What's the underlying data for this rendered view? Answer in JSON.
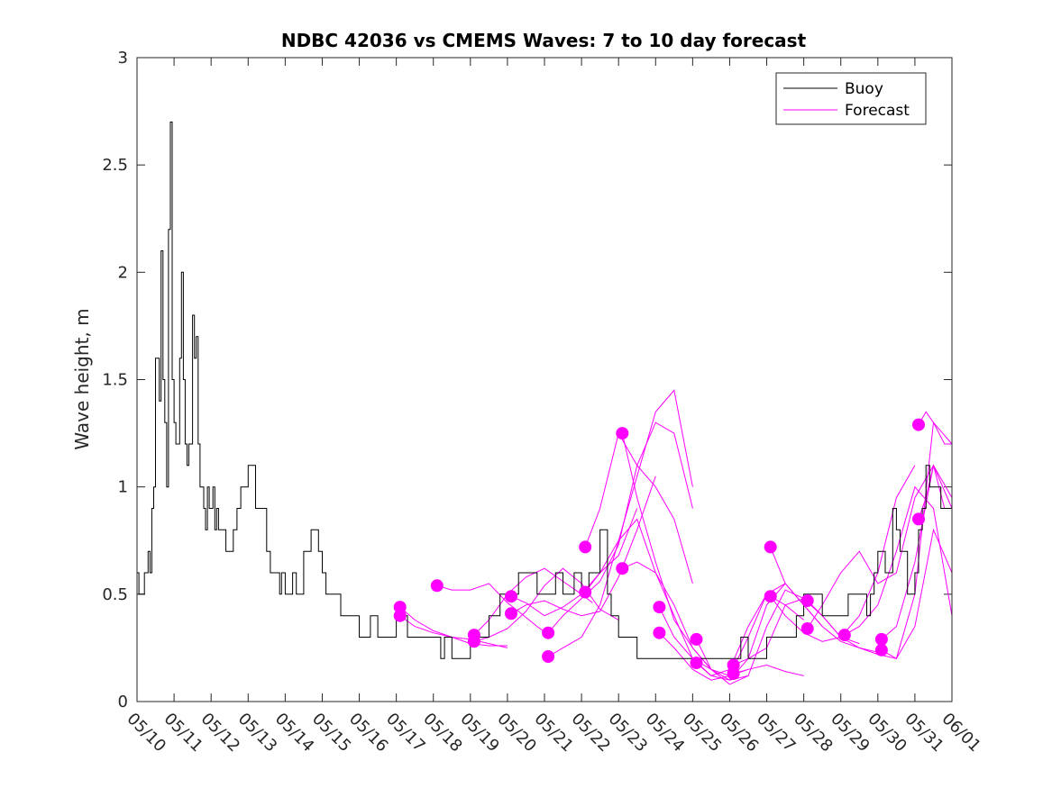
{
  "chart_data": {
    "type": "line",
    "title": "NDBC 42036 vs CMEMS Waves: 7 to 10 day forecast",
    "ylabel": "Wave height, m",
    "xlabel": "",
    "xlim": [
      0,
      22
    ],
    "ylim": [
      0,
      3
    ],
    "x_tick_labels": [
      "05/10",
      "05/11",
      "05/12",
      "05/13",
      "05/14",
      "05/15",
      "05/16",
      "05/17",
      "05/18",
      "05/19",
      "05/20",
      "05/21",
      "05/22",
      "05/23",
      "05/24",
      "05/25",
      "05/26",
      "05/27",
      "05/28",
      "05/29",
      "05/30",
      "05/31",
      "06/01"
    ],
    "y_ticks": [
      0,
      0.5,
      1,
      1.5,
      2,
      2.5,
      3
    ],
    "y_tick_labels": [
      "0",
      "0.5",
      "1",
      "1.5",
      "2",
      "2.5",
      "3"
    ],
    "legend": {
      "placement": "top-right",
      "entries": [
        {
          "label": "Buoy",
          "color": "#000000"
        },
        {
          "label": "Forecast",
          "color": "#ff00ff"
        }
      ]
    },
    "colors": {
      "buoy": "#000000",
      "forecast": "#ff00ff"
    },
    "buoy": {
      "name": "Buoy",
      "x": [
        0,
        0.05,
        0.1,
        0.2,
        0.3,
        0.35,
        0.4,
        0.45,
        0.5,
        0.6,
        0.65,
        0.7,
        0.75,
        0.8,
        0.85,
        0.9,
        0.95,
        1.0,
        1.05,
        1.1,
        1.15,
        1.2,
        1.25,
        1.3,
        1.35,
        1.4,
        1.5,
        1.55,
        1.6,
        1.65,
        1.7,
        1.75,
        1.8,
        1.85,
        1.9,
        1.95,
        2.0,
        2.05,
        2.1,
        2.15,
        2.2,
        2.3,
        2.4,
        2.5,
        2.6,
        2.7,
        2.8,
        3.0,
        3.2,
        3.5,
        3.6,
        3.7,
        3.75,
        3.8,
        3.85,
        3.9,
        4.0,
        4.1,
        4.2,
        4.3,
        4.5,
        4.7,
        4.9,
        5.0,
        5.1,
        5.2,
        5.4,
        5.5,
        5.7,
        5.8,
        6.0,
        6.2,
        6.3,
        6.5,
        6.6,
        6.9,
        7.0,
        7.2,
        7.3,
        7.5,
        7.8,
        8.0,
        8.2,
        8.3,
        8.5,
        8.7,
        9.0,
        9.2,
        9.3,
        9.5,
        9.8,
        10.0,
        10.2,
        10.3,
        10.5,
        10.8,
        11.0,
        11.2,
        11.3,
        11.5,
        11.8,
        12.0,
        12.2,
        12.5,
        12.7,
        12.8,
        13.0,
        13.2,
        13.5,
        13.8,
        14.0,
        14.2,
        14.3,
        14.5,
        14.8,
        15.0,
        15.2,
        15.5,
        15.7,
        16.0,
        16.3,
        16.5,
        16.8,
        17.0,
        17.2,
        17.5,
        17.8,
        18.0,
        18.2,
        18.5,
        18.8,
        19.0,
        19.2,
        19.5,
        19.7,
        19.8,
        19.9,
        20.0,
        20.2,
        20.4,
        20.5,
        20.6,
        20.8,
        21.0,
        21.1,
        21.2,
        21.3,
        21.4,
        21.5,
        21.7,
        22.0
      ],
      "y": [
        0.6,
        0.5,
        0.5,
        0.6,
        0.7,
        0.6,
        0.9,
        1.0,
        1.6,
        1.4,
        2.1,
        1.5,
        1.3,
        1.0,
        2.2,
        2.7,
        1.5,
        1.3,
        1.2,
        1.2,
        1.6,
        2.0,
        1.5,
        1.2,
        1.1,
        1.2,
        1.8,
        1.6,
        1.7,
        1.2,
        1.0,
        1.0,
        0.9,
        0.8,
        1.0,
        0.9,
        0.9,
        1.0,
        0.8,
        0.9,
        0.8,
        0.8,
        0.7,
        0.7,
        0.8,
        0.9,
        1.0,
        1.1,
        0.9,
        0.7,
        0.6,
        0.6,
        0.6,
        0.6,
        0.5,
        0.6,
        0.5,
        0.5,
        0.6,
        0.5,
        0.7,
        0.8,
        0.7,
        0.6,
        0.5,
        0.5,
        0.5,
        0.4,
        0.4,
        0.4,
        0.3,
        0.3,
        0.4,
        0.3,
        0.3,
        0.3,
        0.4,
        0.4,
        0.3,
        0.3,
        0.3,
        0.3,
        0.2,
        0.3,
        0.2,
        0.2,
        0.3,
        0.3,
        0.3,
        0.4,
        0.5,
        0.5,
        0.5,
        0.6,
        0.6,
        0.5,
        0.5,
        0.5,
        0.6,
        0.5,
        0.6,
        0.5,
        0.6,
        0.8,
        0.5,
        0.4,
        0.3,
        0.3,
        0.2,
        0.2,
        0.2,
        0.2,
        0.2,
        0.2,
        0.2,
        0.2,
        0.2,
        0.2,
        0.2,
        0.2,
        0.3,
        0.2,
        0.2,
        0.3,
        0.3,
        0.3,
        0.4,
        0.5,
        0.5,
        0.4,
        0.4,
        0.4,
        0.5,
        0.5,
        0.4,
        0.5,
        0.6,
        0.7,
        0.6,
        0.9,
        0.8,
        0.7,
        0.5,
        0.6,
        0.8,
        0.9,
        1.1,
        1.0,
        1.0,
        0.9,
        0.8
      ]
    },
    "forecasts": [
      {
        "name": "Forecast",
        "x": [
          7.1,
          7.5,
          8.0,
          8.5,
          9.0,
          9.5,
          10.0
        ],
        "y": [
          0.44,
          0.38,
          0.33,
          0.3,
          0.27,
          0.26,
          0.26
        ]
      },
      {
        "name": "Forecast",
        "x": [
          7.1,
          7.5,
          8.0,
          8.5,
          9.0,
          9.5,
          10.0
        ],
        "y": [
          0.4,
          0.35,
          0.32,
          0.3,
          0.29,
          0.27,
          0.25
        ]
      },
      {
        "name": "Forecast",
        "x": [
          8.1,
          8.5,
          9.0,
          9.5,
          10.0,
          10.3,
          10.8,
          11.2
        ],
        "y": [
          0.54,
          0.52,
          0.52,
          0.55,
          0.46,
          0.42,
          0.35,
          0.3
        ]
      },
      {
        "name": "Forecast",
        "x": [
          9.1,
          9.5,
          10.0,
          10.5,
          11.0,
          11.5,
          12.0,
          12.3
        ],
        "y": [
          0.31,
          0.38,
          0.5,
          0.58,
          0.62,
          0.56,
          0.5,
          0.46
        ]
      },
      {
        "name": "Forecast",
        "x": [
          9.1,
          9.5,
          10.0,
          10.5,
          11.0,
          11.5,
          12.0,
          12.5,
          13.0
        ],
        "y": [
          0.28,
          0.3,
          0.34,
          0.42,
          0.54,
          0.62,
          0.55,
          0.43,
          0.38
        ]
      },
      {
        "name": "Forecast",
        "x": [
          10.1,
          10.5,
          11.0,
          11.5,
          12.0,
          12.5,
          13.0,
          13.5
        ],
        "y": [
          0.49,
          0.46,
          0.4,
          0.44,
          0.5,
          0.6,
          0.68,
          0.9
        ]
      },
      {
        "name": "Forecast",
        "x": [
          10.1,
          10.5,
          11.0,
          11.5,
          12.0,
          12.5,
          13.0,
          13.5,
          14.0
        ],
        "y": [
          0.41,
          0.45,
          0.47,
          0.43,
          0.4,
          0.42,
          0.58,
          0.8,
          1.05
        ]
      },
      {
        "name": "Forecast",
        "x": [
          11.1,
          11.5,
          12.0,
          12.5,
          13.0,
          13.5,
          14.0,
          14.5,
          15.0
        ],
        "y": [
          0.21,
          0.25,
          0.3,
          0.45,
          0.75,
          1.05,
          1.35,
          1.45,
          1.0
        ]
      },
      {
        "name": "Forecast",
        "x": [
          11.1,
          11.5,
          12.0,
          12.5,
          13.0,
          13.5,
          14.0,
          14.5,
          15.0
        ],
        "y": [
          0.32,
          0.4,
          0.48,
          0.56,
          0.73,
          1.1,
          1.3,
          1.25,
          0.9
        ]
      },
      {
        "name": "Forecast",
        "x": [
          12.1,
          12.5,
          13.0,
          13.5,
          14.0,
          14.5,
          15.0
        ],
        "y": [
          0.72,
          0.9,
          1.25,
          1.1,
          1.0,
          0.85,
          0.55
        ]
      },
      {
        "name": "Forecast",
        "x": [
          12.1,
          12.5,
          13.0,
          13.5,
          14.0,
          14.5,
          15.0,
          15.5
        ],
        "y": [
          0.51,
          0.6,
          0.75,
          0.85,
          0.6,
          0.4,
          0.2,
          0.15
        ]
      },
      {
        "name": "Forecast",
        "x": [
          13.1,
          13.5,
          14.0,
          14.5,
          15.0,
          15.5,
          16.0,
          16.5
        ],
        "y": [
          1.25,
          0.95,
          0.65,
          0.38,
          0.25,
          0.15,
          0.12,
          0.15
        ]
      },
      {
        "name": "Forecast",
        "x": [
          13.1,
          13.5,
          14.0,
          14.5,
          15.0,
          15.5,
          16.0,
          16.5
        ],
        "y": [
          0.62,
          0.65,
          0.6,
          0.45,
          0.25,
          0.15,
          0.1,
          0.12
        ]
      },
      {
        "name": "Forecast",
        "x": [
          14.1,
          14.5,
          15.0,
          15.5,
          16.0,
          16.5,
          17.0,
          17.5
        ],
        "y": [
          0.44,
          0.3,
          0.2,
          0.12,
          0.15,
          0.35,
          0.5,
          0.55
        ]
      },
      {
        "name": "Forecast",
        "x": [
          14.1,
          14.5,
          15.0,
          15.5,
          16.0,
          16.5,
          17.0,
          17.5,
          18.0
        ],
        "y": [
          0.32,
          0.25,
          0.15,
          0.1,
          0.12,
          0.3,
          0.5,
          0.45,
          0.38
        ]
      },
      {
        "name": "Forecast",
        "x": [
          15.1,
          15.5,
          16.0,
          16.5,
          17.0,
          17.5,
          18.0,
          18.5
        ],
        "y": [
          0.29,
          0.15,
          0.08,
          0.12,
          0.35,
          0.52,
          0.48,
          0.4
        ]
      },
      {
        "name": "Forecast",
        "x": [
          15.1,
          15.5,
          16.0,
          16.5,
          17.0,
          17.5,
          18.0,
          18.5
        ],
        "y": [
          0.18,
          0.12,
          0.1,
          0.2,
          0.45,
          0.55,
          0.45,
          0.35
        ]
      },
      {
        "name": "Forecast",
        "x": [
          16.1,
          16.5,
          17.0,
          17.5,
          18.0,
          18.5,
          19.0,
          19.5
        ],
        "y": [
          0.17,
          0.2,
          0.25,
          0.45,
          0.48,
          0.4,
          0.3,
          0.27
        ]
      },
      {
        "name": "Forecast",
        "x": [
          16.1,
          16.5,
          17.0,
          17.5,
          18.0
        ],
        "y": [
          0.13,
          0.15,
          0.17,
          0.14,
          0.12
        ]
      },
      {
        "name": "Forecast",
        "x": [
          17.1,
          17.5,
          18.0,
          18.5,
          19.0,
          19.5,
          20.0
        ],
        "y": [
          0.72,
          0.55,
          0.45,
          0.35,
          0.28,
          0.25,
          0.23
        ]
      },
      {
        "name": "Forecast",
        "x": [
          17.1,
          17.5,
          18.0,
          18.5,
          19.0,
          19.5,
          20.0,
          20.5,
          21.0
        ],
        "y": [
          0.49,
          0.4,
          0.32,
          0.28,
          0.3,
          0.4,
          0.6,
          0.95,
          1.1
        ]
      },
      {
        "name": "Forecast",
        "x": [
          18.1,
          18.5,
          19.0,
          19.5,
          20.0,
          20.5,
          21.0,
          21.5,
          22.0
        ],
        "y": [
          0.47,
          0.4,
          0.3,
          0.25,
          0.22,
          0.2,
          0.5,
          1.3,
          1.2
        ]
      },
      {
        "name": "Forecast",
        "x": [
          18.1,
          18.5,
          19.0,
          19.5,
          20.0,
          20.5,
          21.0,
          21.5,
          22.0
        ],
        "y": [
          0.34,
          0.45,
          0.6,
          0.7,
          0.55,
          0.6,
          0.95,
          1.1,
          0.9
        ]
      },
      {
        "name": "Forecast",
        "x": [
          19.1,
          19.5,
          20.0,
          20.5,
          21.0,
          21.5,
          22.0
        ],
        "y": [
          0.31,
          0.35,
          0.45,
          0.7,
          1.0,
          0.9,
          0.4
        ]
      },
      {
        "name": "Forecast",
        "x": [
          20.1,
          20.5,
          21.0,
          21.5,
          22.0
        ],
        "y": [
          0.29,
          0.35,
          0.65,
          1.1,
          0.95
        ]
      },
      {
        "name": "Forecast",
        "x": [
          20.1,
          20.5,
          21.0,
          21.5,
          22.0
        ],
        "y": [
          0.24,
          0.2,
          0.35,
          0.8,
          0.6
        ]
      },
      {
        "name": "Forecast",
        "x": [
          21.1,
          21.3,
          21.5,
          21.8,
          22.0
        ],
        "y": [
          1.29,
          1.35,
          1.3,
          1.2,
          1.2
        ]
      },
      {
        "name": "Forecast",
        "x": [
          21.1,
          21.3,
          21.5,
          21.8,
          22.0
        ],
        "y": [
          0.85,
          0.95,
          1.1,
          0.9,
          0.9
        ]
      }
    ]
  }
}
